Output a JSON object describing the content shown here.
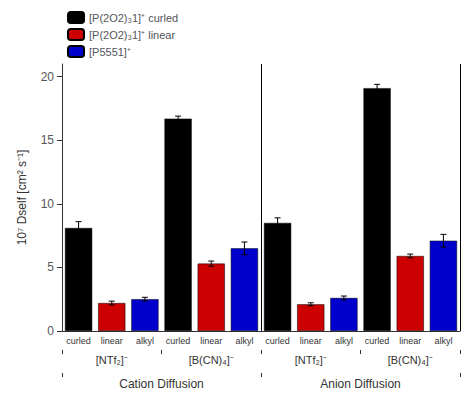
{
  "chart_data": {
    "type": "bar",
    "ylabel": "10⁷ Dself [cm² s⁻¹]",
    "categories": [
      "[NTf₂]⁻",
      "[B(CN)₄]⁻",
      "[NTf₂]⁻",
      "[B(CN)₄]⁻"
    ],
    "sections": [
      "Cation Diffusion",
      "Anion Diffusion"
    ],
    "series": [
      {
        "name": "[P(2O2)₃1]⁺ curled",
        "tick_label": "curled",
        "color": "#000000",
        "values": [
          8.1,
          16.7,
          8.5,
          19.1
        ],
        "errors": [
          0.5,
          0.2,
          0.4,
          0.3
        ]
      },
      {
        "name": "[P(2O2)₃1]⁺ linear",
        "tick_label": "linear",
        "color": "#cc0000",
        "values": [
          2.2,
          5.3,
          2.1,
          5.9
        ],
        "errors": [
          0.15,
          0.2,
          0.12,
          0.15
        ]
      },
      {
        "name": "[P5551]⁺",
        "tick_label": "alkyl",
        "color": "#0000cc",
        "values": [
          2.5,
          6.5,
          2.6,
          7.1
        ],
        "errors": [
          0.15,
          0.5,
          0.15,
          0.5
        ]
      }
    ],
    "ylim": [
      0,
      21
    ],
    "yticks": [
      0,
      5,
      10,
      15,
      20
    ],
    "grid": false,
    "legend": "upper left"
  }
}
